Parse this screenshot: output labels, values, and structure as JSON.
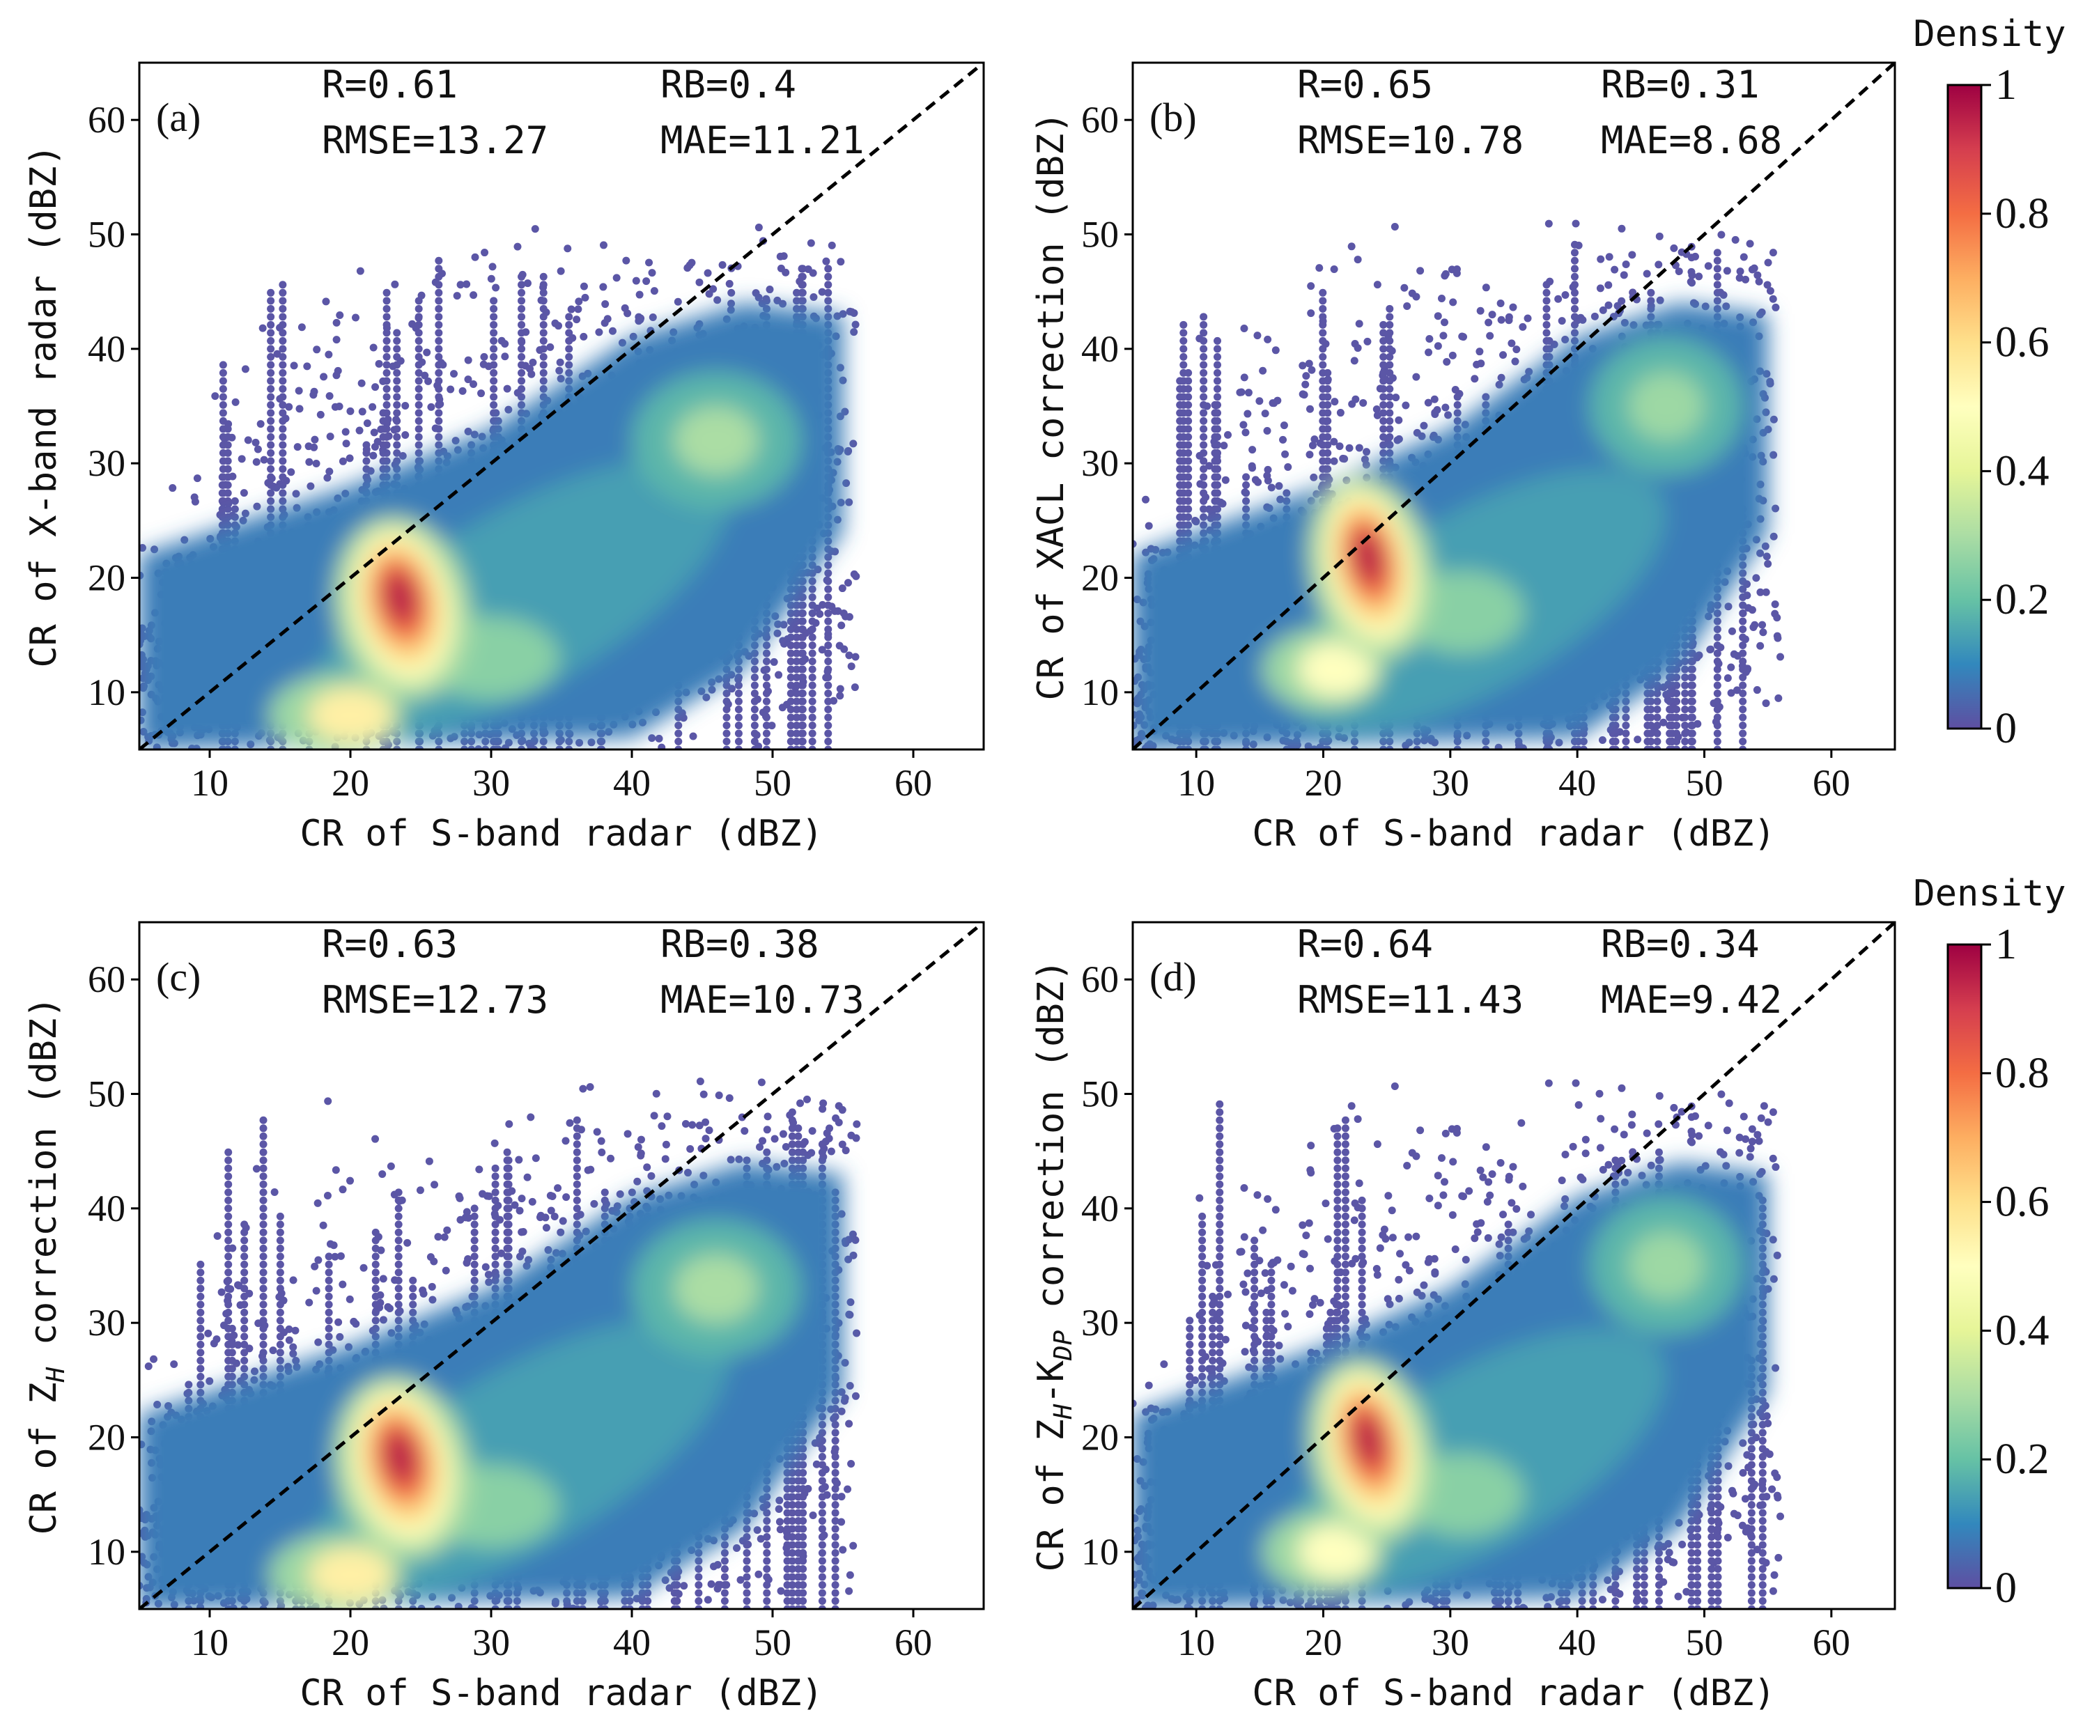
{
  "colorbar": {
    "title": "Density",
    "ticks": [
      "0",
      "0.2",
      "0.4",
      "0.6",
      "0.8",
      "1"
    ],
    "tick_values": [
      0,
      0.2,
      0.4,
      0.6,
      0.8,
      1
    ],
    "colormap": [
      "#5e4fa2",
      "#3288bd",
      "#66c2a5",
      "#abdda4",
      "#e6f598",
      "#ffffbf",
      "#fee08b",
      "#fdae61",
      "#f46d43",
      "#d53e4f",
      "#9e0142"
    ]
  },
  "colors": {
    "scatter_base": "#5b56a6",
    "identity_line": "#000000",
    "axis": "#000000"
  },
  "chart_data": [
    {
      "type": "scatter",
      "panel_label": "(a)",
      "xlabel": "CR of S-band radar (dBZ)",
      "ylabel": "CR of X-band radar (dBZ)",
      "ylabel_parts": {
        "pre": "CR of X-band radar (dBZ)",
        "main": "",
        "sub": "",
        "mid": "",
        "main2": "",
        "sub2": "",
        "post": ""
      },
      "xlim": [
        5,
        65
      ],
      "ylim": [
        5,
        65
      ],
      "xticks": [
        10,
        20,
        30,
        40,
        50,
        60
      ],
      "yticks": [
        10,
        20,
        30,
        40,
        50,
        60
      ],
      "stats": {
        "R": "R=0.61",
        "RB": "RB=0.4",
        "RMSE": "RMSE=13.27",
        "MAE": "MAE=11.21"
      },
      "identity_line": [
        [
          5,
          5
        ],
        [
          65,
          65
        ]
      ],
      "density_peaks": [
        {
          "x": 23.5,
          "y": 18.5,
          "density": 1.0
        },
        {
          "x": 19,
          "y": 8,
          "density": 0.55
        },
        {
          "x": 46,
          "y": 32,
          "density": 0.3
        },
        {
          "x": 30,
          "y": 13,
          "density": 0.25
        }
      ]
    },
    {
      "type": "scatter",
      "panel_label": "(b)",
      "xlabel": "CR of S-band radar (dBZ)",
      "ylabel": "CR of XACL correction (dBZ)",
      "ylabel_parts": {
        "pre": "CR of XACL correction (dBZ)",
        "main": "",
        "sub": "",
        "mid": "",
        "main2": "",
        "sub2": "",
        "post": ""
      },
      "xlim": [
        5,
        65
      ],
      "ylim": [
        5,
        65
      ],
      "xticks": [
        10,
        20,
        30,
        40,
        50,
        60
      ],
      "yticks": [
        10,
        20,
        30,
        40,
        50,
        60
      ],
      "stats": {
        "R": "R=0.65",
        "RB": "RB=0.31",
        "RMSE": "RMSE=10.78",
        "MAE": "MAE=8.68"
      },
      "identity_line": [
        [
          5,
          5
        ],
        [
          65,
          65
        ]
      ],
      "density_peaks": [
        {
          "x": 23.5,
          "y": 22,
          "density": 1.0
        },
        {
          "x": 20,
          "y": 12,
          "density": 0.5
        },
        {
          "x": 47,
          "y": 35,
          "density": 0.28
        },
        {
          "x": 31,
          "y": 17,
          "density": 0.25
        }
      ]
    },
    {
      "type": "scatter",
      "panel_label": "(c)",
      "xlabel": "CR of S-band radar (dBZ)",
      "ylabel": "CR of ZH correction (dBZ)",
      "ylabel_parts": {
        "pre": "CR of ",
        "main": "Z",
        "sub": "H",
        "mid": "",
        "main2": "",
        "sub2": "",
        "post": " correction (dBZ)"
      },
      "xlim": [
        5,
        65
      ],
      "ylim": [
        5,
        65
      ],
      "xticks": [
        10,
        20,
        30,
        40,
        50,
        60
      ],
      "yticks": [
        10,
        20,
        30,
        40,
        50,
        60
      ],
      "stats": {
        "R": "R=0.63",
        "RB": "RB=0.38",
        "RMSE": "RMSE=12.73",
        "MAE": "MAE=10.73"
      },
      "identity_line": [
        [
          5,
          5
        ],
        [
          65,
          65
        ]
      ],
      "density_peaks": [
        {
          "x": 23.5,
          "y": 18.5,
          "density": 1.0
        },
        {
          "x": 19,
          "y": 8,
          "density": 0.55
        },
        {
          "x": 46,
          "y": 33,
          "density": 0.3
        },
        {
          "x": 30,
          "y": 14,
          "density": 0.25
        }
      ]
    },
    {
      "type": "scatter",
      "panel_label": "(d)",
      "xlabel": "CR of S-band radar (dBZ)",
      "ylabel": "CR of ZH-KDP correction (dBZ)",
      "ylabel_parts": {
        "pre": "CR of ",
        "main": "Z",
        "sub": "H",
        "mid": "-K",
        "main2": "",
        "sub2": "DP",
        "post": " correction (dBZ)"
      },
      "xlim": [
        5,
        65
      ],
      "ylim": [
        5,
        65
      ],
      "xticks": [
        10,
        20,
        30,
        40,
        50,
        60
      ],
      "yticks": [
        10,
        20,
        30,
        40,
        50,
        60
      ],
      "stats": {
        "R": "R=0.64",
        "RB": "RB=0.34",
        "RMSE": "RMSE=11.43",
        "MAE": "MAE=9.42"
      },
      "identity_line": [
        [
          5,
          5
        ],
        [
          65,
          65
        ]
      ],
      "density_peaks": [
        {
          "x": 23.5,
          "y": 20,
          "density": 1.0
        },
        {
          "x": 20,
          "y": 10,
          "density": 0.5
        },
        {
          "x": 47,
          "y": 35,
          "density": 0.28
        },
        {
          "x": 31,
          "y": 15,
          "density": 0.25
        }
      ]
    }
  ]
}
